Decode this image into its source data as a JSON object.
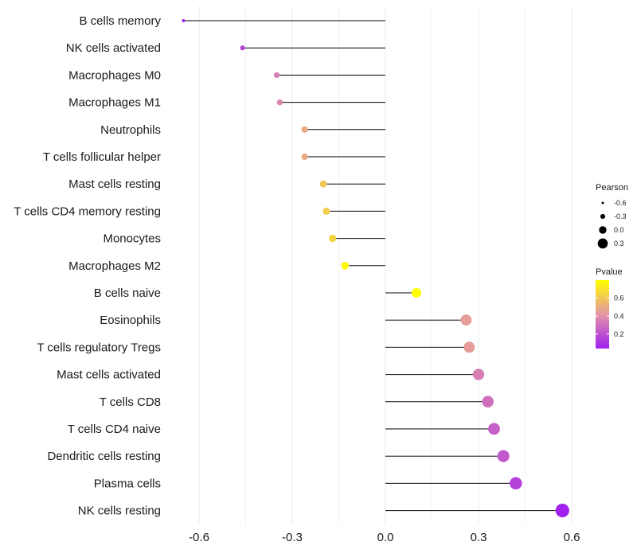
{
  "chart_data": {
    "type": "lollipop",
    "categories": [
      "B cells memory",
      "NK cells activated",
      "Macrophages M0",
      "Macrophages M1",
      "Neutrophils",
      "T cells follicular helper",
      "Mast cells resting",
      "T cells CD4 memory resting",
      "Monocytes",
      "Macrophages M2",
      "B cells naive",
      "Eosinophils",
      "T cells regulatory  Tregs ",
      "Mast cells activated",
      "T cells CD8",
      "T cells CD4 naive",
      "Dendritic cells resting",
      "Plasma cells",
      "NK cells resting"
    ],
    "pearson": [
      -0.65,
      -0.46,
      -0.35,
      -0.34,
      -0.26,
      -0.26,
      -0.2,
      -0.19,
      -0.17,
      -0.13,
      0.1,
      0.26,
      0.27,
      0.3,
      0.33,
      0.35,
      0.38,
      0.42,
      0.57
    ],
    "pvalue": [
      0.05,
      0.15,
      0.35,
      0.37,
      0.5,
      0.5,
      0.6,
      0.62,
      0.65,
      0.78,
      0.8,
      0.45,
      0.45,
      0.35,
      0.3,
      0.25,
      0.22,
      0.15,
      0.04
    ],
    "xlim": [
      -0.65,
      0.6
    ],
    "xticks": [
      -0.6,
      -0.3,
      0.0,
      0.3,
      0.6
    ],
    "xtick_labels": [
      "-0.6",
      "-0.3",
      "0.0",
      "0.3",
      "0.6"
    ],
    "size_legend": {
      "title": "Pearson",
      "values": [
        -0.6,
        -0.3,
        0.0,
        0.3
      ],
      "labels": [
        "-0.6",
        "-0.3",
        "0.0",
        "0.3"
      ]
    },
    "color_legend": {
      "title": "Pvalue",
      "range": [
        0.04,
        0.8
      ],
      "ticks": [
        0.2,
        0.4,
        0.6
      ],
      "labels": [
        "0.2",
        "0.4",
        "0.6"
      ],
      "low_color": "#a020f0",
      "high_color": "#ffff00",
      "mid_color": "#e495a5"
    },
    "grid_color": "#ebebeb",
    "segment_color": "#000000"
  }
}
